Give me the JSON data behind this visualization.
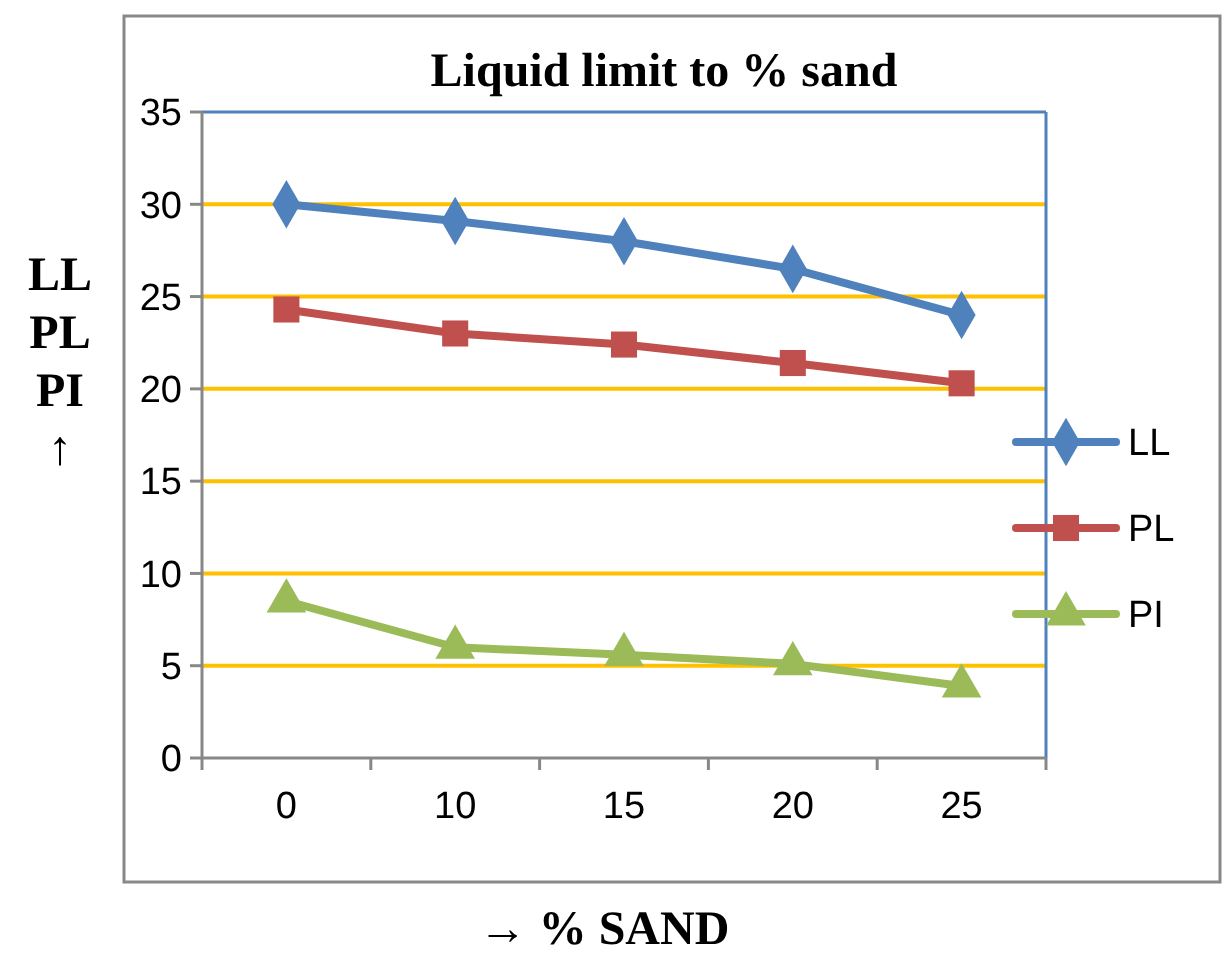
{
  "chart_data": {
    "type": "line",
    "title": "Liquid limit to % sand",
    "xlabel": "→ % SAND",
    "ylabel": "LL\nPL\nPI\n↑",
    "categories": [
      "0",
      "10",
      "15",
      "20",
      "25"
    ],
    "series": [
      {
        "name": "LL",
        "color": "#4f81bd",
        "marker": "diamond",
        "values": [
          30,
          29.1,
          28,
          26.5,
          24
        ]
      },
      {
        "name": "PL",
        "color": "#c0504d",
        "marker": "square",
        "values": [
          24.3,
          23,
          22.4,
          21.4,
          20.3
        ]
      },
      {
        "name": "PI",
        "color": "#9bbb59",
        "marker": "triangle",
        "values": [
          8.5,
          6,
          5.6,
          5.1,
          3.9
        ]
      }
    ],
    "ylim": [
      0,
      35
    ],
    "yticks": [
      0,
      5,
      10,
      15,
      20,
      25,
      30,
      35
    ],
    "grid": "y",
    "legend": "right"
  }
}
